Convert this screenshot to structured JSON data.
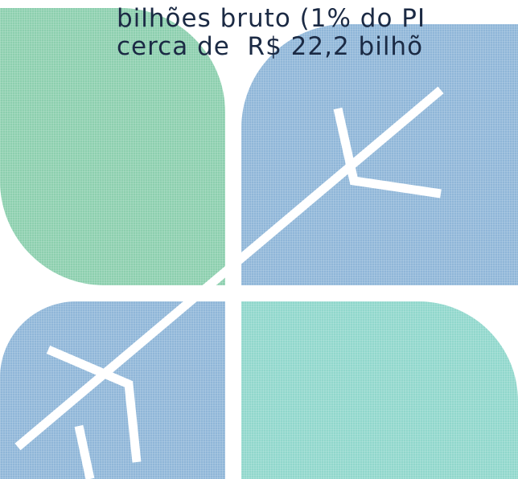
{
  "text": {
    "lines": [
      "bilhões bruto (1% do PI",
      "cerca de  R$ 22,2 bilhõ"
    ]
  }
}
